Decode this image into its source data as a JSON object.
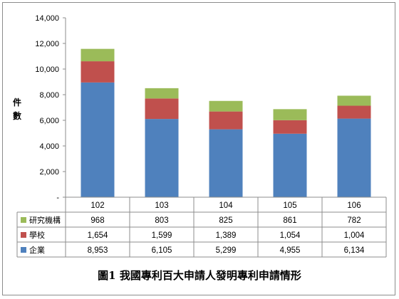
{
  "chart_data": {
    "type": "bar",
    "stacked": true,
    "categories": [
      "102",
      "103",
      "104",
      "105",
      "106"
    ],
    "series": [
      {
        "name": "企業",
        "color": "#4F81BD",
        "values": [
          8953,
          6105,
          5299,
          4955,
          6134
        ]
      },
      {
        "name": "學校",
        "color": "#C0504D",
        "values": [
          1654,
          1599,
          1389,
          1054,
          1004
        ]
      },
      {
        "name": "研究機構",
        "color": "#9BBB59",
        "values": [
          968,
          803,
          825,
          861,
          782
        ]
      }
    ],
    "table_rows": [
      {
        "series_name": "研究機構",
        "color": "#9BBB59",
        "cells": [
          "968",
          "803",
          "825",
          "861",
          "782"
        ]
      },
      {
        "series_name": "學校",
        "color": "#C0504D",
        "cells": [
          "1,654",
          "1,599",
          "1,389",
          "1,054",
          "1,004"
        ]
      },
      {
        "series_name": "企業",
        "color": "#4F81BD",
        "cells": [
          "8,953",
          "6,105",
          "5,299",
          "4,955",
          "6,134"
        ]
      }
    ],
    "ylabel": "件數",
    "ylim": [
      0,
      14000
    ],
    "yticks": [
      0,
      2000,
      4000,
      6000,
      8000,
      10000,
      12000,
      14000
    ],
    "ytick_labels": [
      "-",
      "2,000",
      "4,000",
      "6,000",
      "8,000",
      "10,000",
      "12,000",
      "14,000"
    ],
    "grid": false,
    "legend_placement": "data-table"
  },
  "caption": "圖1  我國專利百大申請人發明專利申請情形"
}
